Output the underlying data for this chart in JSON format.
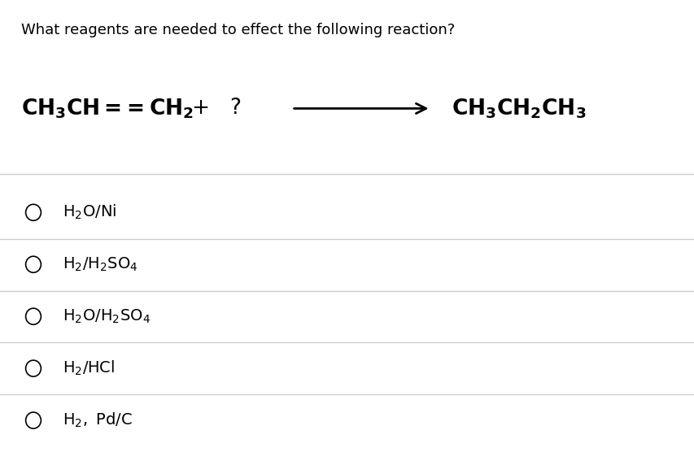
{
  "title": "What reagents are needed to effect the following reaction?",
  "title_fontsize": 13,
  "reaction_fontsize": 19,
  "options_fontsize": 14,
  "background_color": "#ffffff",
  "text_color": "#000000",
  "line_color": "#cccccc",
  "circle_color": "#000000"
}
